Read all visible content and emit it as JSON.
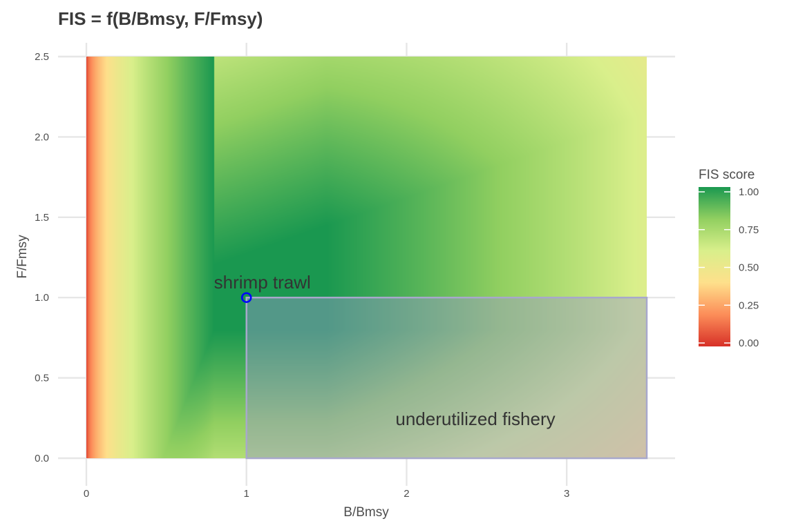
{
  "chart_data": {
    "type": "heatmap",
    "title": "FIS = f(B/Bmsy, F/Fmsy)",
    "xlabel": "B/Bmsy",
    "ylabel": "F/Fmsy",
    "xlim": [
      0,
      3.5
    ],
    "ylim": [
      0,
      2.5
    ],
    "x_ticks": [
      0,
      1,
      2,
      3
    ],
    "y_ticks": [
      0.0,
      0.5,
      1.0,
      1.5,
      2.0,
      2.5
    ],
    "x_tick_labels": [
      "0",
      "1",
      "2",
      "3"
    ],
    "y_tick_labels": [
      "0.0",
      "0.5",
      "1.0",
      "1.5",
      "2.0",
      "2.5"
    ],
    "grid": true,
    "colorscale": {
      "name": "RdYlGn",
      "min": 0,
      "max": 1,
      "stops": [
        "#d73027",
        "#fc8d59",
        "#fee08b",
        "#d9ef8b",
        "#91cf60",
        "#1a9850"
      ]
    },
    "legend": {
      "title": "FIS score",
      "placement": "right",
      "ticks": [
        0.0,
        0.25,
        0.5,
        0.75,
        1.0
      ],
      "tick_labels": [
        "0.00",
        "0.25",
        "0.50",
        "0.75",
        "1.00"
      ]
    },
    "points": [
      {
        "label": "shrimp trawl",
        "x": 1.0,
        "y": 1.0,
        "color": "#0000ff"
      }
    ],
    "regions": [
      {
        "label": "underutilized fishery",
        "x": [
          1.0,
          3.5
        ],
        "y": [
          0.0,
          1.0
        ],
        "fill": "#9999cc",
        "opacity": 0.45
      }
    ]
  }
}
